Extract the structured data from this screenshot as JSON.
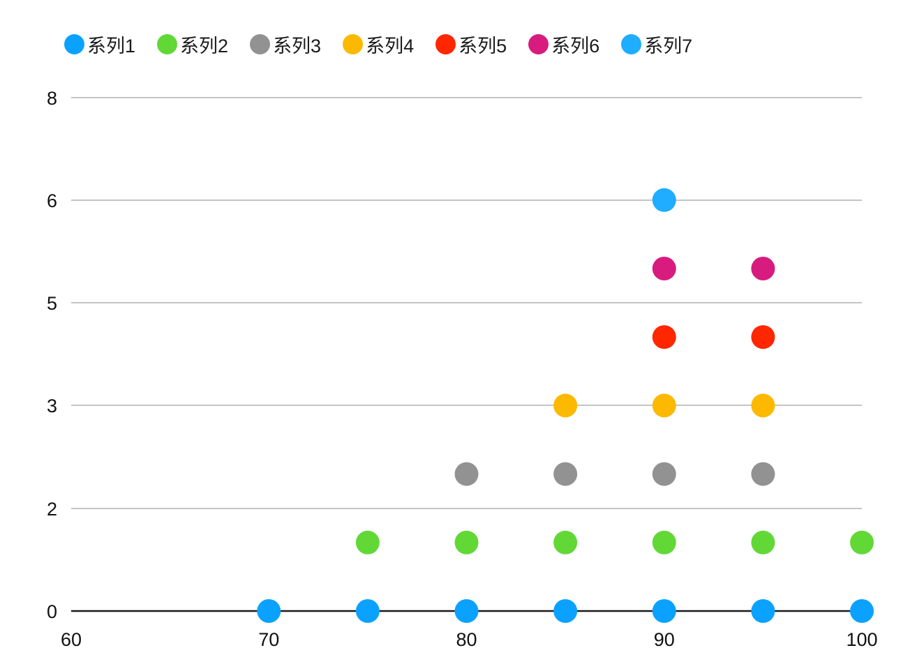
{
  "chart_data": {
    "type": "scatter",
    "title": "",
    "xlabel": "",
    "ylabel": "",
    "xlim": [
      60,
      100
    ],
    "ylim": [
      0,
      8
    ],
    "x_ticks": [
      60,
      70,
      80,
      90,
      100
    ],
    "y_ticks": [
      0,
      2,
      3,
      5,
      6,
      8
    ],
    "y_tick_labels": [
      "0",
      "2",
      "3",
      "5",
      "6",
      "8"
    ],
    "grid": true,
    "legend_position": "top",
    "series": [
      {
        "name": "系列1",
        "color": "#0BA2FF",
        "points": [
          [
            70,
            0
          ],
          [
            75,
            0
          ],
          [
            80,
            0
          ],
          [
            85,
            0
          ],
          [
            90,
            0
          ],
          [
            95,
            0
          ],
          [
            100,
            0
          ]
        ]
      },
      {
        "name": "系列2",
        "color": "#61D836",
        "points": [
          [
            75,
            1
          ],
          [
            80,
            1
          ],
          [
            85,
            1
          ],
          [
            90,
            1
          ],
          [
            95,
            1
          ],
          [
            100,
            1
          ]
        ]
      },
      {
        "name": "系列3",
        "color": "#929292",
        "points": [
          [
            80,
            2
          ],
          [
            85,
            2
          ],
          [
            90,
            2
          ],
          [
            95,
            2
          ]
        ]
      },
      {
        "name": "系列4",
        "color": "#FCB900",
        "points": [
          [
            85,
            3
          ],
          [
            90,
            3
          ],
          [
            95,
            3
          ]
        ]
      },
      {
        "name": "系列5",
        "color": "#FF2600",
        "points": [
          [
            90,
            4
          ],
          [
            95,
            4
          ]
        ]
      },
      {
        "name": "系列6",
        "color": "#D81B7F",
        "points": [
          [
            90,
            5
          ],
          [
            95,
            5
          ]
        ]
      },
      {
        "name": "系列7",
        "color": "#1EADFF",
        "points": [
          [
            90,
            6
          ]
        ]
      }
    ]
  }
}
